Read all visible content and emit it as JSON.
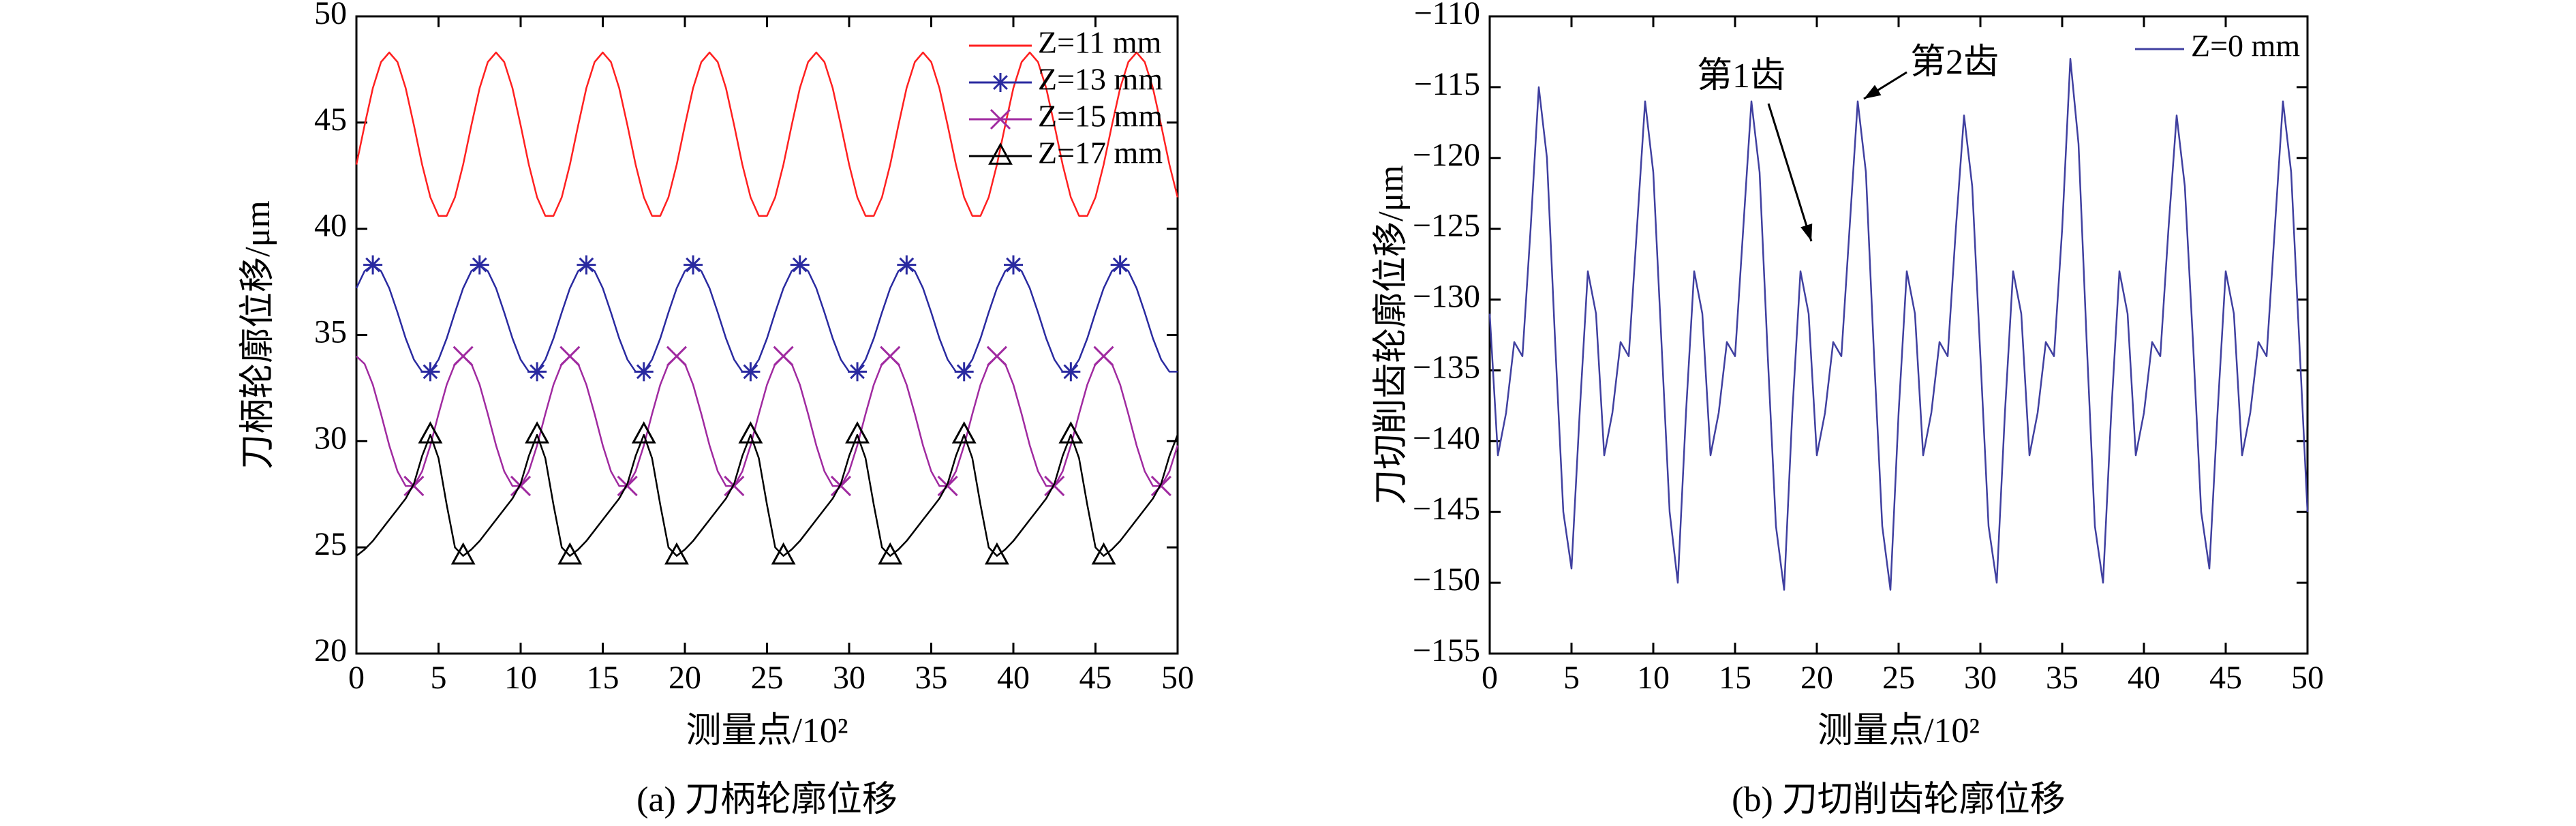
{
  "chart_data": [
    {
      "type": "line",
      "caption": "(a) 刀柄轮廓位移",
      "xlabel": "测量点/10²",
      "ylabel": "刀柄轮廓位移/μm",
      "x": [
        0,
        0.5,
        1,
        1.5,
        2,
        2.5,
        3,
        3.5,
        4,
        4.5,
        5,
        5.5,
        6,
        6.5,
        7,
        7.5,
        8,
        8.5,
        9,
        9.5,
        10,
        10.5,
        11,
        11.5,
        12,
        12.5,
        13,
        13.5,
        14,
        14.5,
        15,
        15.5,
        16,
        16.5,
        17,
        17.5,
        18,
        18.5,
        19,
        19.5,
        20,
        20.5,
        21,
        21.5,
        22,
        22.5,
        23,
        23.5,
        24,
        24.5,
        25,
        25.5,
        26,
        26.5,
        27,
        27.5,
        28,
        28.5,
        29,
        29.5,
        30,
        30.5,
        31,
        31.5,
        32,
        32.5,
        33,
        33.5,
        34,
        34.5,
        35,
        35.5,
        36,
        36.5,
        37,
        37.5,
        38,
        38.5,
        39,
        39.5,
        40,
        40.5,
        41,
        41.5,
        42,
        42.5,
        43,
        43.5,
        44,
        44.5,
        45,
        45.5,
        46,
        46.5,
        47,
        47.5,
        48,
        48.5,
        49,
        49.5,
        50
      ],
      "xlim": [
        0,
        50
      ],
      "xticks": [
        0,
        5,
        10,
        15,
        20,
        25,
        30,
        35,
        40,
        45,
        50
      ],
      "ylim": [
        20,
        50
      ],
      "yticks": [
        20,
        25,
        30,
        35,
        40,
        45,
        50
      ],
      "legend": "upper right",
      "series": [
        {
          "name": "Z=11 mm",
          "color": "#ff2020",
          "marker": "none",
          "values": [
            43.02,
            44.87,
            46.62,
            47.85,
            48.3,
            47.85,
            46.62,
            44.87,
            43.02,
            41.48,
            40.61,
            40.61,
            41.48,
            43.02,
            44.87,
            46.62,
            47.85,
            48.3,
            47.85,
            46.62,
            44.87,
            43.02,
            41.48,
            40.61,
            40.61,
            41.48,
            43.02,
            44.87,
            46.62,
            47.85,
            48.3,
            47.85,
            46.62,
            44.87,
            43.02,
            41.48,
            40.61,
            40.61,
            41.48,
            43.02,
            44.87,
            46.62,
            47.85,
            48.3,
            47.85,
            46.62,
            44.87,
            43.02,
            41.48,
            40.61,
            40.61,
            41.48,
            43.02,
            44.87,
            46.62,
            47.85,
            48.3,
            47.85,
            46.62,
            44.87,
            43.02,
            41.48,
            40.61,
            40.61,
            41.48,
            43.02,
            44.87,
            46.62,
            47.85,
            48.3,
            47.85,
            46.62,
            44.87,
            43.02,
            41.48,
            40.61,
            40.61,
            41.48,
            43.02,
            44.87,
            46.62,
            47.85,
            48.3,
            47.85,
            46.62,
            44.87,
            43.02,
            41.48,
            40.61,
            40.61,
            41.48,
            43.02,
            44.87,
            46.62,
            47.85,
            48.3,
            47.85,
            46.62,
            44.87,
            43.02,
            41.48
          ]
        },
        {
          "name": "Z=13 mm",
          "color": "#2a2aa0",
          "marker": "star",
          "values": [
            37.2,
            38.01,
            38.3,
            38.01,
            37.2,
            36.06,
            34.84,
            33.84,
            33.27,
            33.27,
            33.84,
            34.84,
            36.06,
            37.2,
            38.01,
            38.3,
            38.01,
            37.2,
            36.06,
            34.84,
            33.84,
            33.27,
            33.27,
            33.84,
            34.84,
            36.06,
            37.2,
            38.01,
            38.3,
            38.01,
            37.2,
            36.06,
            34.84,
            33.84,
            33.27,
            33.27,
            33.84,
            34.84,
            36.06,
            37.2,
            38.01,
            38.3,
            38.01,
            37.2,
            36.06,
            34.84,
            33.84,
            33.27,
            33.27,
            33.84,
            34.84,
            36.06,
            37.2,
            38.01,
            38.3,
            38.01,
            37.2,
            36.06,
            34.84,
            33.84,
            33.27,
            33.27,
            33.84,
            34.84,
            36.06,
            37.2,
            38.01,
            38.3,
            38.01,
            37.2,
            36.06,
            34.84,
            33.84,
            33.27,
            33.27,
            33.84,
            34.84,
            36.06,
            37.2,
            38.01,
            38.3,
            38.01,
            37.2,
            36.06,
            34.84,
            33.84,
            33.27,
            33.27,
            33.84,
            34.84,
            36.06,
            37.2,
            38.01,
            38.3,
            38.01,
            37.2,
            36.06,
            34.84,
            33.84,
            33.27,
            33.27
          ]
        },
        {
          "name": "Z=15 mm",
          "color": "#a02aa0",
          "marker": "x",
          "values": [
            34,
            33.64,
            32.66,
            31.28,
            29.8,
            28.58,
            27.89,
            27.89,
            28.58,
            29.8,
            31.28,
            32.66,
            33.64,
            34,
            33.64,
            32.66,
            31.28,
            29.8,
            28.58,
            27.89,
            27.89,
            28.58,
            29.8,
            31.28,
            32.66,
            33.64,
            34,
            33.64,
            32.66,
            31.28,
            29.8,
            28.58,
            27.89,
            27.89,
            28.58,
            29.8,
            31.28,
            32.66,
            33.64,
            34,
            33.64,
            32.66,
            31.28,
            29.8,
            28.58,
            27.89,
            27.89,
            28.58,
            29.8,
            31.28,
            32.66,
            33.64,
            34,
            33.64,
            32.66,
            31.28,
            29.8,
            28.58,
            27.89,
            27.89,
            28.58,
            29.8,
            31.28,
            32.66,
            33.64,
            34,
            33.64,
            32.66,
            31.28,
            29.8,
            28.58,
            27.89,
            27.89,
            28.58,
            29.8,
            31.28,
            32.66,
            33.64,
            34,
            33.64,
            32.66,
            31.28,
            29.8,
            28.58,
            27.89,
            27.89,
            28.58,
            29.8,
            31.28,
            32.66,
            33.64,
            34,
            33.64,
            32.66,
            31.28,
            29.8,
            28.58,
            27.89,
            27.89,
            28.58,
            29.8
          ]
        },
        {
          "name": "Z=17 mm",
          "color": "#000000",
          "marker": "triangle",
          "values": [
            24.6,
            24.9,
            25.3,
            25.8,
            26.3,
            26.8,
            27.3,
            28,
            29.3,
            30.3,
            29.2,
            27,
            25,
            24.6,
            24.9,
            25.3,
            25.8,
            26.3,
            26.8,
            27.3,
            28,
            29.3,
            30.3,
            29.2,
            27,
            25,
            24.6,
            24.9,
            25.3,
            25.8,
            26.3,
            26.8,
            27.3,
            28,
            29.3,
            30.3,
            29.2,
            27,
            25,
            24.6,
            24.9,
            25.3,
            25.8,
            26.3,
            26.8,
            27.3,
            28,
            29.3,
            30.3,
            29.2,
            27,
            25,
            24.6,
            24.9,
            25.3,
            25.8,
            26.3,
            26.8,
            27.3,
            28,
            29.3,
            30.3,
            29.2,
            27,
            25,
            24.6,
            24.9,
            25.3,
            25.8,
            26.3,
            26.8,
            27.3,
            28,
            29.3,
            30.3,
            29.2,
            27,
            25,
            24.6,
            24.9,
            25.3,
            25.8,
            26.3,
            26.8,
            27.3,
            28,
            29.3,
            30.3,
            29.2,
            27,
            25,
            24.6,
            24.9,
            25.3,
            25.8,
            26.3,
            26.8,
            27.3,
            28,
            29.3,
            30.3
          ]
        }
      ]
    },
    {
      "type": "line",
      "caption": "(b) 刀切削齿轮廓位移",
      "xlabel": "测量点/10²",
      "ylabel": "刀切削齿轮廓位移/μm",
      "x": [
        0,
        0.5,
        1,
        1.5,
        2,
        2.5,
        3,
        3.5,
        4,
        4.5,
        5,
        5.5,
        6,
        6.5,
        7,
        7.5,
        8,
        8.5,
        9,
        9.5,
        10,
        10.5,
        11,
        11.5,
        12,
        12.5,
        13,
        13.5,
        14,
        14.5,
        15,
        15.5,
        16,
        16.5,
        17,
        17.5,
        18,
        18.5,
        19,
        19.5,
        20,
        20.5,
        21,
        21.5,
        22,
        22.5,
        23,
        23.5,
        24,
        24.5,
        25,
        25.5,
        26,
        26.5,
        27,
        27.5,
        28,
        28.5,
        29,
        29.5,
        30,
        30.5,
        31,
        31.5,
        32,
        32.5,
        33,
        33.5,
        34,
        34.5,
        35,
        35.5,
        36,
        36.5,
        37,
        37.5,
        38,
        38.5,
        39,
        39.5,
        40,
        40.5,
        41,
        41.5,
        42,
        42.5,
        43,
        43.5,
        44,
        44.5,
        45,
        45.5,
        46,
        46.5,
        47,
        47.5,
        48,
        48.5,
        49,
        49.5,
        50
      ],
      "xlim": [
        0,
        50
      ],
      "xticks": [
        0,
        5,
        10,
        15,
        20,
        25,
        30,
        35,
        40,
        45,
        50
      ],
      "ylim": [
        -155,
        -110
      ],
      "yticks": [
        {
          "value": -155,
          "label": "−155"
        },
        {
          "value": -150,
          "label": "−150"
        },
        {
          "value": -145,
          "label": "−145"
        },
        {
          "value": -140,
          "label": "−140"
        },
        {
          "value": -135,
          "label": "−135"
        },
        {
          "value": -130,
          "label": "−130"
        },
        {
          "value": -125,
          "label": "−125"
        },
        {
          "value": -120,
          "label": "−120"
        },
        {
          "value": -115,
          "label": "−115"
        },
        {
          "value": -110,
          "label": "−110"
        }
      ],
      "legend": "upper right",
      "annotations": [
        {
          "text": "第1齿"
        },
        {
          "text": "第2齿"
        }
      ],
      "series": [
        {
          "name": "Z=0 mm",
          "color": "#4040a0",
          "marker": "none",
          "values": [
            -131,
            -141,
            -138,
            -133,
            -134,
            -125,
            -115,
            -120,
            -133,
            -145,
            -149,
            -138,
            -128,
            -131,
            -141,
            -138,
            -133,
            -134,
            -125,
            -116,
            -121,
            -133,
            -145,
            -150,
            -138,
            -128,
            -131,
            -141,
            -138,
            -133,
            -134,
            -125,
            -116,
            -121,
            -134,
            -146,
            -150.5,
            -138,
            -128,
            -131,
            -141,
            -138,
            -133,
            -134,
            -125,
            -116,
            -121,
            -134,
            -146,
            -150.5,
            -138,
            -128,
            -131,
            -141,
            -138,
            -133,
            -134,
            -125,
            -117,
            -122,
            -134,
            -146,
            -150,
            -138,
            -128,
            -131,
            -141,
            -138,
            -133,
            -134,
            -125,
            -113,
            -119,
            -133,
            -146,
            -150,
            -138,
            -128,
            -131,
            -141,
            -138,
            -133,
            -134,
            -125,
            -117,
            -122,
            -133,
            -145,
            -149,
            -138,
            -128,
            -131,
            -141,
            -138,
            -133,
            -134,
            -125,
            -116,
            -121,
            -133,
            -145
          ]
        }
      ]
    }
  ]
}
